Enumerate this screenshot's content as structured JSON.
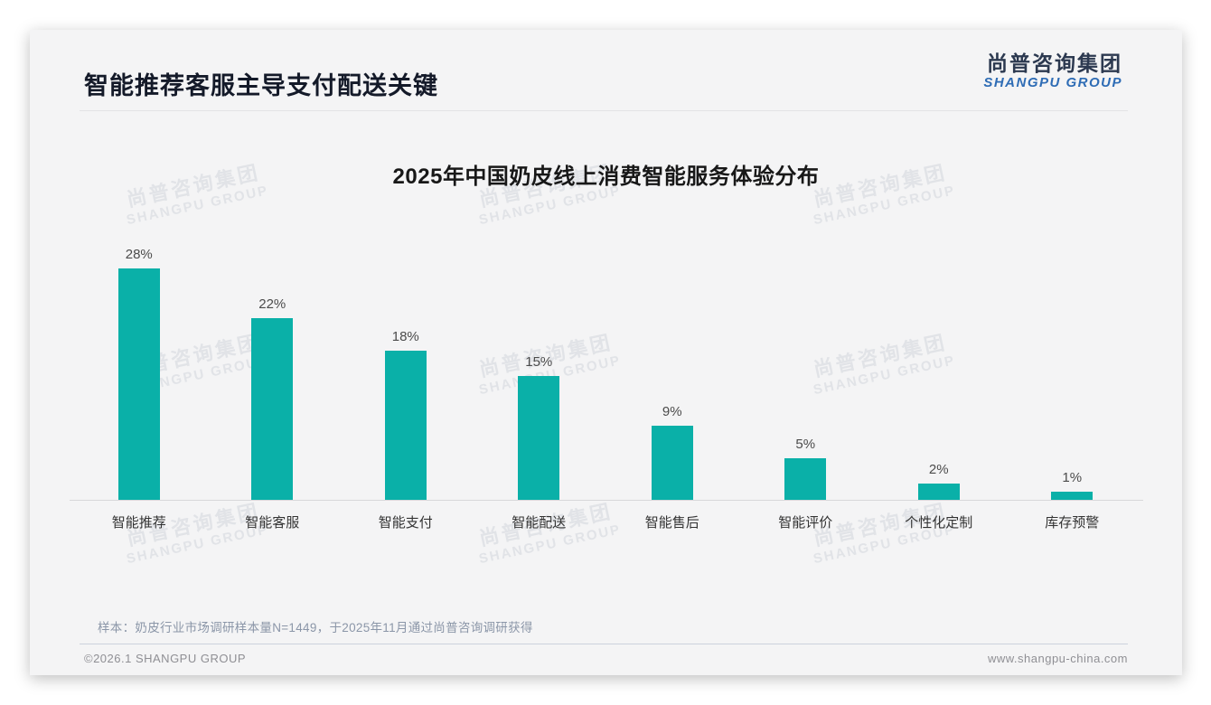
{
  "page": {
    "title": "智能推荐客服主导支付配送关键",
    "logo": {
      "zh": "尚普咨询集团",
      "en": "SHANGPU GROUP"
    },
    "watermark": {
      "zh": "尚普咨询集团",
      "en": "SHANGPU GROUP"
    },
    "sample_note": "样本：奶皮行业市场调研样本量N=1449，于2025年11月通过尚普咨询调研获得",
    "footer": {
      "left": "©2026.1 SHANGPU GROUP",
      "right": "www.shangpu-china.com"
    }
  },
  "colors": {
    "bar": "#0ab0a8",
    "logo_accent_blue": "#2e6cb5",
    "title_dark": "#141a29",
    "card_background": "#f4f4f5"
  },
  "chart_data": {
    "type": "bar",
    "title": "2025年中国奶皮线上消费智能服务体验分布",
    "categories": [
      "智能推荐",
      "智能客服",
      "智能支付",
      "智能配送",
      "智能售后",
      "智能评价",
      "个性化定制",
      "库存预警"
    ],
    "values": [
      28,
      22,
      18,
      15,
      9,
      5,
      2,
      1
    ],
    "value_labels": [
      "28%",
      "22%",
      "18%",
      "15%",
      "9%",
      "5%",
      "2%",
      "1%"
    ],
    "unit": "%",
    "xlabel": "",
    "ylabel": "",
    "ylim": [
      0,
      30
    ],
    "grid": false,
    "legend": "none",
    "bar_color": "#0ab0a8"
  }
}
